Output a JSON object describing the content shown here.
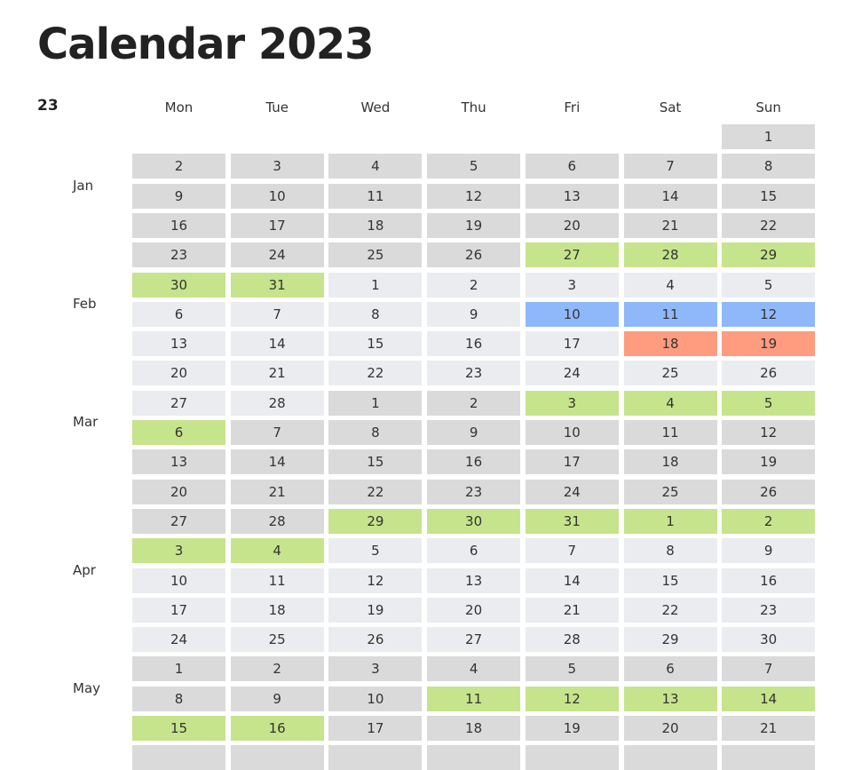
{
  "title": "Calendar 2023",
  "year_short": "23",
  "weekdays": [
    "Mon",
    "Tue",
    "Wed",
    "Thu",
    "Fri",
    "Sat",
    "Sun"
  ],
  "colors": {
    "month_dark": "#dadada",
    "month_light": "#eaecef",
    "holiday_green": "#c6e48b",
    "event_blue": "#8fb8fb",
    "event_orange": "#ff9c80"
  },
  "months": [
    {
      "label": "Jan",
      "row": 1
    },
    {
      "label": "Feb",
      "row": 5
    },
    {
      "label": "Mar",
      "row": 9
    },
    {
      "label": "Apr",
      "row": 14
    },
    {
      "label": "May",
      "row": 18
    }
  ],
  "weeks": [
    [
      null,
      null,
      null,
      null,
      null,
      null,
      {
        "d": "1",
        "s": "dark"
      }
    ],
    [
      {
        "d": "2",
        "s": "dark"
      },
      {
        "d": "3",
        "s": "dark"
      },
      {
        "d": "4",
        "s": "dark"
      },
      {
        "d": "5",
        "s": "dark"
      },
      {
        "d": "6",
        "s": "dark"
      },
      {
        "d": "7",
        "s": "dark"
      },
      {
        "d": "8",
        "s": "dark"
      }
    ],
    [
      {
        "d": "9",
        "s": "dark"
      },
      {
        "d": "10",
        "s": "dark"
      },
      {
        "d": "11",
        "s": "dark"
      },
      {
        "d": "12",
        "s": "dark"
      },
      {
        "d": "13",
        "s": "dark"
      },
      {
        "d": "14",
        "s": "dark"
      },
      {
        "d": "15",
        "s": "dark"
      }
    ],
    [
      {
        "d": "16",
        "s": "dark"
      },
      {
        "d": "17",
        "s": "dark"
      },
      {
        "d": "18",
        "s": "dark"
      },
      {
        "d": "19",
        "s": "dark"
      },
      {
        "d": "20",
        "s": "dark"
      },
      {
        "d": "21",
        "s": "dark"
      },
      {
        "d": "22",
        "s": "dark"
      }
    ],
    [
      {
        "d": "23",
        "s": "dark"
      },
      {
        "d": "24",
        "s": "dark"
      },
      {
        "d": "25",
        "s": "dark"
      },
      {
        "d": "26",
        "s": "dark"
      },
      {
        "d": "27",
        "s": "green"
      },
      {
        "d": "28",
        "s": "green"
      },
      {
        "d": "29",
        "s": "green"
      }
    ],
    [
      {
        "d": "30",
        "s": "green"
      },
      {
        "d": "31",
        "s": "green"
      },
      {
        "d": "1",
        "s": "light"
      },
      {
        "d": "2",
        "s": "light"
      },
      {
        "d": "3",
        "s": "light"
      },
      {
        "d": "4",
        "s": "light"
      },
      {
        "d": "5",
        "s": "light"
      }
    ],
    [
      {
        "d": "6",
        "s": "light"
      },
      {
        "d": "7",
        "s": "light"
      },
      {
        "d": "8",
        "s": "light"
      },
      {
        "d": "9",
        "s": "light"
      },
      {
        "d": "10",
        "s": "blue"
      },
      {
        "d": "11",
        "s": "blue"
      },
      {
        "d": "12",
        "s": "blue"
      }
    ],
    [
      {
        "d": "13",
        "s": "light"
      },
      {
        "d": "14",
        "s": "light"
      },
      {
        "d": "15",
        "s": "light"
      },
      {
        "d": "16",
        "s": "light"
      },
      {
        "d": "17",
        "s": "light"
      },
      {
        "d": "18",
        "s": "orange"
      },
      {
        "d": "19",
        "s": "orange"
      }
    ],
    [
      {
        "d": "20",
        "s": "light"
      },
      {
        "d": "21",
        "s": "light"
      },
      {
        "d": "22",
        "s": "light"
      },
      {
        "d": "23",
        "s": "light"
      },
      {
        "d": "24",
        "s": "light"
      },
      {
        "d": "25",
        "s": "light"
      },
      {
        "d": "26",
        "s": "light"
      }
    ],
    [
      {
        "d": "27",
        "s": "light"
      },
      {
        "d": "28",
        "s": "light"
      },
      {
        "d": "1",
        "s": "dark"
      },
      {
        "d": "2",
        "s": "dark"
      },
      {
        "d": "3",
        "s": "green"
      },
      {
        "d": "4",
        "s": "green"
      },
      {
        "d": "5",
        "s": "green"
      }
    ],
    [
      {
        "d": "6",
        "s": "green"
      },
      {
        "d": "7",
        "s": "dark"
      },
      {
        "d": "8",
        "s": "dark"
      },
      {
        "d": "9",
        "s": "dark"
      },
      {
        "d": "10",
        "s": "dark"
      },
      {
        "d": "11",
        "s": "dark"
      },
      {
        "d": "12",
        "s": "dark"
      }
    ],
    [
      {
        "d": "13",
        "s": "dark"
      },
      {
        "d": "14",
        "s": "dark"
      },
      {
        "d": "15",
        "s": "dark"
      },
      {
        "d": "16",
        "s": "dark"
      },
      {
        "d": "17",
        "s": "dark"
      },
      {
        "d": "18",
        "s": "dark"
      },
      {
        "d": "19",
        "s": "dark"
      }
    ],
    [
      {
        "d": "20",
        "s": "dark"
      },
      {
        "d": "21",
        "s": "dark"
      },
      {
        "d": "22",
        "s": "dark"
      },
      {
        "d": "23",
        "s": "dark"
      },
      {
        "d": "24",
        "s": "dark"
      },
      {
        "d": "25",
        "s": "dark"
      },
      {
        "d": "26",
        "s": "dark"
      }
    ],
    [
      {
        "d": "27",
        "s": "dark"
      },
      {
        "d": "28",
        "s": "dark"
      },
      {
        "d": "29",
        "s": "green"
      },
      {
        "d": "30",
        "s": "green"
      },
      {
        "d": "31",
        "s": "green"
      },
      {
        "d": "1",
        "s": "green"
      },
      {
        "d": "2",
        "s": "green"
      }
    ],
    [
      {
        "d": "3",
        "s": "green"
      },
      {
        "d": "4",
        "s": "green"
      },
      {
        "d": "5",
        "s": "light"
      },
      {
        "d": "6",
        "s": "light"
      },
      {
        "d": "7",
        "s": "light"
      },
      {
        "d": "8",
        "s": "light"
      },
      {
        "d": "9",
        "s": "light"
      }
    ],
    [
      {
        "d": "10",
        "s": "light"
      },
      {
        "d": "11",
        "s": "light"
      },
      {
        "d": "12",
        "s": "light"
      },
      {
        "d": "13",
        "s": "light"
      },
      {
        "d": "14",
        "s": "light"
      },
      {
        "d": "15",
        "s": "light"
      },
      {
        "d": "16",
        "s": "light"
      }
    ],
    [
      {
        "d": "17",
        "s": "light"
      },
      {
        "d": "18",
        "s": "light"
      },
      {
        "d": "19",
        "s": "light"
      },
      {
        "d": "20",
        "s": "light"
      },
      {
        "d": "21",
        "s": "light"
      },
      {
        "d": "22",
        "s": "light"
      },
      {
        "d": "23",
        "s": "light"
      }
    ],
    [
      {
        "d": "24",
        "s": "light"
      },
      {
        "d": "25",
        "s": "light"
      },
      {
        "d": "26",
        "s": "light"
      },
      {
        "d": "27",
        "s": "light"
      },
      {
        "d": "28",
        "s": "light"
      },
      {
        "d": "29",
        "s": "light"
      },
      {
        "d": "30",
        "s": "light"
      }
    ],
    [
      {
        "d": "1",
        "s": "dark"
      },
      {
        "d": "2",
        "s": "dark"
      },
      {
        "d": "3",
        "s": "dark"
      },
      {
        "d": "4",
        "s": "dark"
      },
      {
        "d": "5",
        "s": "dark"
      },
      {
        "d": "6",
        "s": "dark"
      },
      {
        "d": "7",
        "s": "dark"
      }
    ],
    [
      {
        "d": "8",
        "s": "dark"
      },
      {
        "d": "9",
        "s": "dark"
      },
      {
        "d": "10",
        "s": "dark"
      },
      {
        "d": "11",
        "s": "green"
      },
      {
        "d": "12",
        "s": "green"
      },
      {
        "d": "13",
        "s": "green"
      },
      {
        "d": "14",
        "s": "green"
      }
    ],
    [
      {
        "d": "15",
        "s": "green"
      },
      {
        "d": "16",
        "s": "green"
      },
      {
        "d": "17",
        "s": "dark"
      },
      {
        "d": "18",
        "s": "dark"
      },
      {
        "d": "19",
        "s": "dark"
      },
      {
        "d": "20",
        "s": "dark"
      },
      {
        "d": "21",
        "s": "dark"
      }
    ],
    [
      {
        "d": "",
        "s": "dark"
      },
      {
        "d": "",
        "s": "dark"
      },
      {
        "d": "",
        "s": "dark"
      },
      {
        "d": "",
        "s": "dark"
      },
      {
        "d": "",
        "s": "dark"
      },
      {
        "d": "",
        "s": "dark"
      },
      {
        "d": "",
        "s": "dark"
      }
    ]
  ]
}
